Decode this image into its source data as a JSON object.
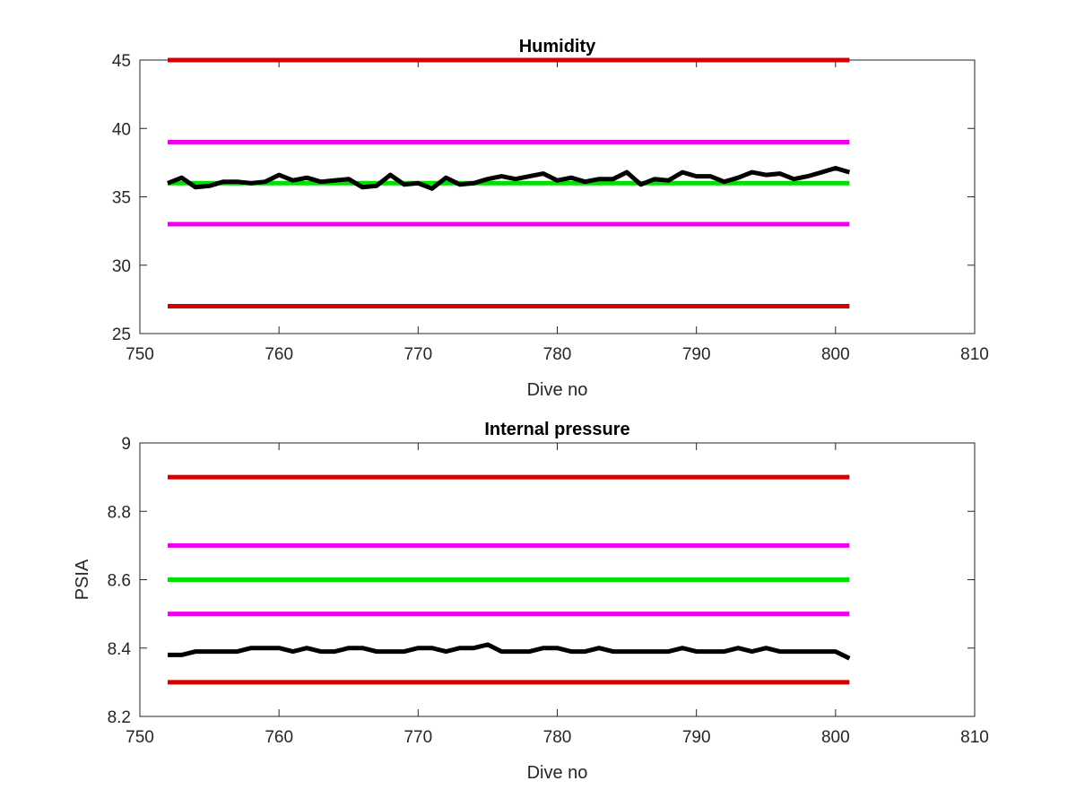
{
  "chart_data": [
    {
      "type": "line",
      "title": "Humidity",
      "xlabel": "Dive no",
      "ylabel": "",
      "xlim": [
        750,
        810
      ],
      "ylim": [
        25,
        45
      ],
      "xticks": [
        750,
        760,
        770,
        780,
        790,
        800,
        810
      ],
      "yticks": [
        25,
        30,
        35,
        40,
        45
      ],
      "xtick_labels": [
        "750",
        "760",
        "770",
        "780",
        "790",
        "800",
        "810"
      ],
      "ytick_labels": [
        "25",
        "30",
        "35",
        "40",
        "45"
      ],
      "grid": false,
      "series": [
        {
          "color": "#d40000",
          "x": [
            752,
            801
          ],
          "values": [
            45,
            45
          ]
        },
        {
          "color": "#ee00ee",
          "x": [
            752,
            801
          ],
          "values": [
            39,
            39
          ]
        },
        {
          "color": "#00e000",
          "x": [
            752,
            801
          ],
          "values": [
            36,
            36
          ]
        },
        {
          "color": "#ee00ee",
          "x": [
            752,
            801
          ],
          "values": [
            33,
            33
          ]
        },
        {
          "color": "#d40000",
          "x": [
            752,
            801
          ],
          "values": [
            27,
            27
          ]
        },
        {
          "color": "#000000",
          "x": [
            752,
            753,
            754,
            755,
            756,
            757,
            758,
            759,
            760,
            761,
            762,
            763,
            764,
            765,
            766,
            767,
            768,
            769,
            770,
            771,
            772,
            773,
            774,
            775,
            776,
            777,
            778,
            779,
            780,
            781,
            782,
            783,
            784,
            785,
            786,
            787,
            788,
            789,
            790,
            791,
            792,
            793,
            794,
            795,
            796,
            797,
            798,
            799,
            800,
            801
          ],
          "values": [
            36.0,
            36.4,
            35.7,
            35.8,
            36.1,
            36.1,
            36.0,
            36.1,
            36.6,
            36.2,
            36.4,
            36.1,
            36.2,
            36.3,
            35.7,
            35.8,
            36.6,
            35.9,
            36.0,
            35.6,
            36.4,
            35.9,
            36.0,
            36.3,
            36.5,
            36.3,
            36.5,
            36.7,
            36.2,
            36.4,
            36.1,
            36.3,
            36.3,
            36.8,
            35.9,
            36.3,
            36.2,
            36.8,
            36.5,
            36.5,
            36.1,
            36.4,
            36.8,
            36.6,
            36.7,
            36.3,
            36.5,
            36.8,
            37.1,
            36.8
          ]
        }
      ]
    },
    {
      "type": "line",
      "title": "Internal pressure",
      "xlabel": "Dive no",
      "ylabel": "PSIA",
      "xlim": [
        750,
        810
      ],
      "ylim": [
        8.2,
        9.0
      ],
      "xticks": [
        750,
        760,
        770,
        780,
        790,
        800,
        810
      ],
      "yticks": [
        8.2,
        8.4,
        8.6,
        8.8,
        9.0
      ],
      "xtick_labels": [
        "750",
        "760",
        "770",
        "780",
        "790",
        "800",
        "810"
      ],
      "ytick_labels": [
        "8.2",
        "8.4",
        "8.6",
        "8.8",
        "9"
      ],
      "grid": false,
      "series": [
        {
          "color": "#d40000",
          "x": [
            752,
            801
          ],
          "values": [
            8.9,
            8.9
          ]
        },
        {
          "color": "#ee00ee",
          "x": [
            752,
            801
          ],
          "values": [
            8.7,
            8.7
          ]
        },
        {
          "color": "#00e000",
          "x": [
            752,
            801
          ],
          "values": [
            8.6,
            8.6
          ]
        },
        {
          "color": "#ee00ee",
          "x": [
            752,
            801
          ],
          "values": [
            8.5,
            8.5
          ]
        },
        {
          "color": "#d40000",
          "x": [
            752,
            801
          ],
          "values": [
            8.3,
            8.3
          ]
        },
        {
          "color": "#000000",
          "x": [
            752,
            753,
            754,
            755,
            756,
            757,
            758,
            759,
            760,
            761,
            762,
            763,
            764,
            765,
            766,
            767,
            768,
            769,
            770,
            771,
            772,
            773,
            774,
            775,
            776,
            777,
            778,
            779,
            780,
            781,
            782,
            783,
            784,
            785,
            786,
            787,
            788,
            789,
            790,
            791,
            792,
            793,
            794,
            795,
            796,
            797,
            798,
            799,
            800,
            801
          ],
          "values": [
            8.38,
            8.38,
            8.39,
            8.39,
            8.39,
            8.39,
            8.4,
            8.4,
            8.4,
            8.39,
            8.4,
            8.39,
            8.39,
            8.4,
            8.4,
            8.39,
            8.39,
            8.39,
            8.4,
            8.4,
            8.39,
            8.4,
            8.4,
            8.41,
            8.39,
            8.39,
            8.39,
            8.4,
            8.4,
            8.39,
            8.39,
            8.4,
            8.39,
            8.39,
            8.39,
            8.39,
            8.39,
            8.4,
            8.39,
            8.39,
            8.39,
            8.4,
            8.39,
            8.4,
            8.39,
            8.39,
            8.39,
            8.39,
            8.39,
            8.37
          ]
        }
      ]
    }
  ]
}
